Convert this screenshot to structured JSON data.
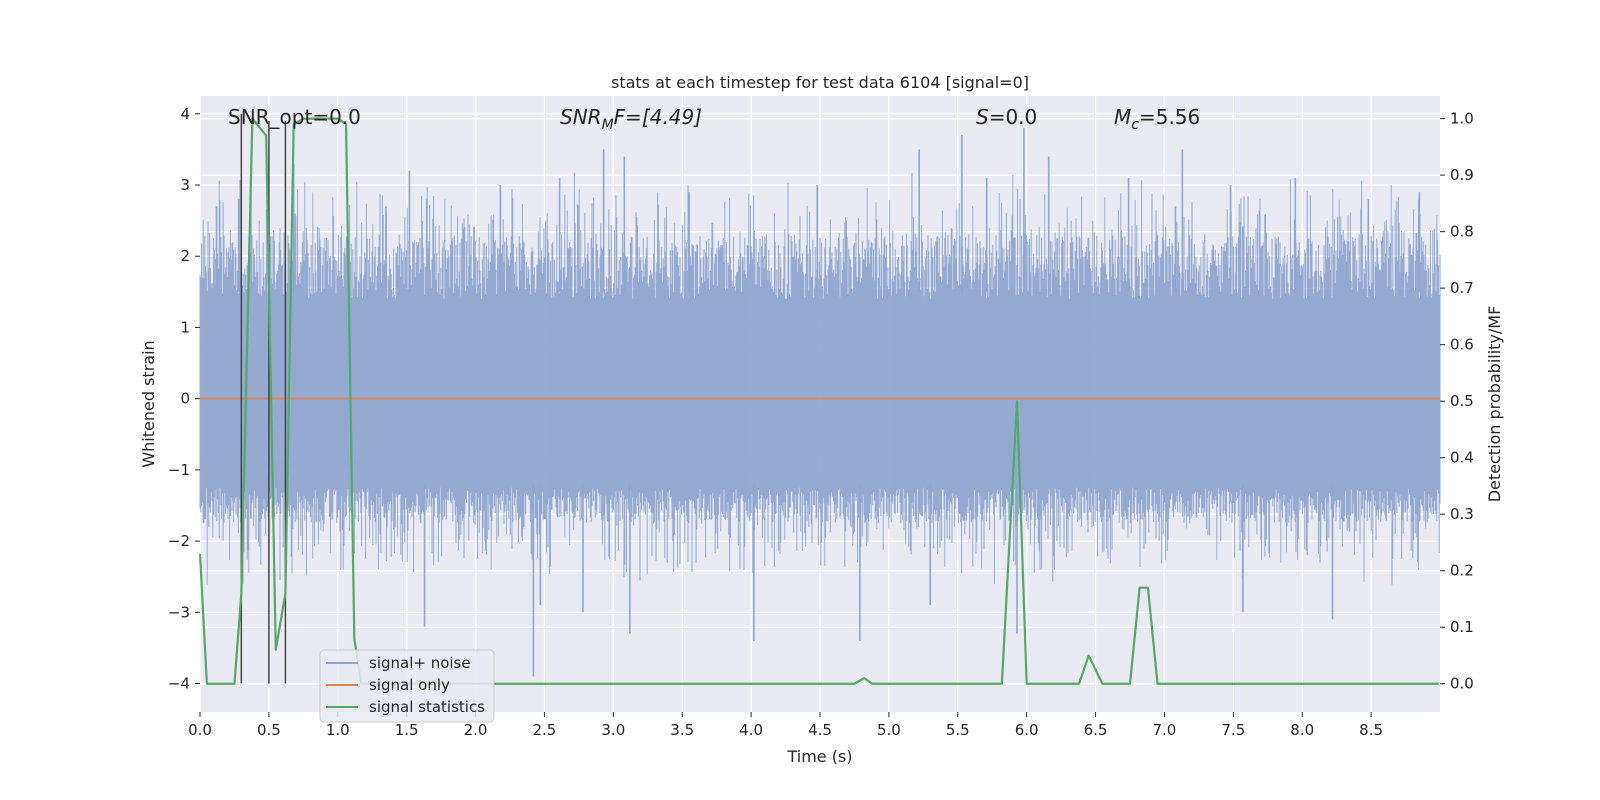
{
  "chart_data": {
    "type": "line",
    "title": "stats at each timestep for test data 6104 [signal=0]",
    "xlabel": "Time (s)",
    "ylabel_left": "Whitened strain",
    "ylabel_right": "Detection probability/MF",
    "xlim": [
      0.0,
      9.0
    ],
    "ylim_left": [
      -4.4,
      4.25
    ],
    "ylim_right": [
      -0.05,
      1.04
    ],
    "xticks": [
      0.0,
      0.5,
      1.0,
      1.5,
      2.0,
      2.5,
      3.0,
      3.5,
      4.0,
      4.5,
      5.0,
      5.5,
      6.0,
      6.5,
      7.0,
      7.5,
      8.0,
      8.5
    ],
    "xtick_labels": [
      "0.0",
      "0.5",
      "1.0",
      "1.5",
      "2.0",
      "2.5",
      "3.0",
      "3.5",
      "4.0",
      "4.5",
      "5.0",
      "5.5",
      "6.0",
      "6.5",
      "7.0",
      "7.5",
      "8.0",
      "8.5"
    ],
    "yticks_left": [
      -4,
      -3,
      -2,
      -1,
      0,
      1,
      2,
      3,
      4
    ],
    "ytick_labels_left": [
      "−4",
      "−3",
      "−2",
      "−1",
      "0",
      "1",
      "2",
      "3",
      "4"
    ],
    "yticks_right": [
      0.0,
      0.1,
      0.2,
      0.3,
      0.4,
      0.5,
      0.6,
      0.7,
      0.8,
      0.9,
      1.0
    ],
    "ytick_labels_right": [
      "0.0",
      "0.1",
      "0.2",
      "0.3",
      "0.4",
      "0.5",
      "0.6",
      "0.7",
      "0.8",
      "0.9",
      "1.0"
    ],
    "grid": true,
    "legend_position": "lower-left",
    "series": [
      {
        "name": "signal+ noise",
        "axis": "left",
        "color": "#8fa6cf",
        "style": "dense noise band",
        "typical_range": [
          -1.75,
          2.3
        ],
        "spikes": [
          {
            "x": 0.12,
            "y": 2.7
          },
          {
            "x": 0.28,
            "y": 2.8
          },
          {
            "x": 0.31,
            "y": -2.6
          },
          {
            "x": 0.62,
            "y": -2.7
          },
          {
            "x": 0.68,
            "y": 3.3
          },
          {
            "x": 1.35,
            "y": 2.7
          },
          {
            "x": 1.52,
            "y": 3.2
          },
          {
            "x": 1.63,
            "y": -3.2
          },
          {
            "x": 2.18,
            "y": 3.0
          },
          {
            "x": 2.42,
            "y": -3.9
          },
          {
            "x": 2.47,
            "y": -2.9
          },
          {
            "x": 2.61,
            "y": 3.1
          },
          {
            "x": 2.78,
            "y": -3.0
          },
          {
            "x": 2.93,
            "y": 3.5
          },
          {
            "x": 3.08,
            "y": 3.4
          },
          {
            "x": 3.12,
            "y": -3.3
          },
          {
            "x": 3.55,
            "y": 2.9
          },
          {
            "x": 4.02,
            "y": -3.4
          },
          {
            "x": 4.48,
            "y": 3.0
          },
          {
            "x": 4.79,
            "y": -3.4
          },
          {
            "x": 5.22,
            "y": 3.5
          },
          {
            "x": 5.3,
            "y": -2.9
          },
          {
            "x": 5.53,
            "y": 3.7
          },
          {
            "x": 5.71,
            "y": 3.1
          },
          {
            "x": 5.93,
            "y": -3.3
          },
          {
            "x": 5.98,
            "y": 3.8
          },
          {
            "x": 6.16,
            "y": 3.4
          },
          {
            "x": 6.74,
            "y": 3.1
          },
          {
            "x": 7.08,
            "y": 2.7
          },
          {
            "x": 7.13,
            "y": 3.5
          },
          {
            "x": 7.48,
            "y": 3.0
          },
          {
            "x": 7.57,
            "y": -3.0
          },
          {
            "x": 7.95,
            "y": 3.1
          },
          {
            "x": 8.22,
            "y": -3.1
          },
          {
            "x": 8.48,
            "y": 2.8
          },
          {
            "x": 8.85,
            "y": 2.9
          }
        ]
      },
      {
        "name": "signal only",
        "axis": "left",
        "color": "#dd8452",
        "x": [
          0.0,
          9.0
        ],
        "y": [
          0.0,
          0.0
        ]
      },
      {
        "name": "signal statistics",
        "axis": "right",
        "color": "#55a868",
        "x": [
          0.0,
          0.05,
          0.25,
          0.3,
          0.38,
          0.48,
          0.55,
          0.62,
          0.68,
          0.75,
          1.0,
          1.06,
          1.12,
          1.17,
          4.75,
          4.82,
          4.88,
          5.0,
          5.82,
          5.93,
          6.0,
          6.38,
          6.45,
          6.55,
          6.75,
          6.82,
          6.88,
          6.95,
          7.12,
          8.99
        ],
        "y": [
          0.23,
          0.0,
          0.0,
          0.16,
          1.0,
          0.97,
          0.06,
          0.16,
          0.99,
          1.0,
          1.0,
          0.99,
          0.08,
          0.0,
          0.0,
          0.01,
          0.0,
          0.0,
          0.0,
          0.5,
          0.0,
          0.0,
          0.05,
          0.0,
          0.0,
          0.17,
          0.17,
          0.0,
          0.0,
          0.0
        ]
      }
    ],
    "vertical_markers": {
      "color": "#444444",
      "x": [
        0.3,
        0.5,
        0.62
      ],
      "y_top": [
        4.0,
        3.9,
        3.9
      ],
      "y_bottom": [
        -4.0,
        -4.0,
        -4.0
      ]
    },
    "annotations": [
      {
        "id": "snr-opt",
        "text": "SNR_opt=0.0"
      },
      {
        "id": "snr-mf",
        "text": "SNR",
        "sub": "M",
        "rest": "F=[4.49]"
      },
      {
        "id": "s-value",
        "text": "S",
        "rest": "=0.0"
      },
      {
        "id": "mc-value",
        "text": "M",
        "sub": "c",
        "rest": "=5.56"
      }
    ]
  },
  "colors": {
    "axes_bg": "#eaeaf2",
    "grid": "#ffffff"
  }
}
